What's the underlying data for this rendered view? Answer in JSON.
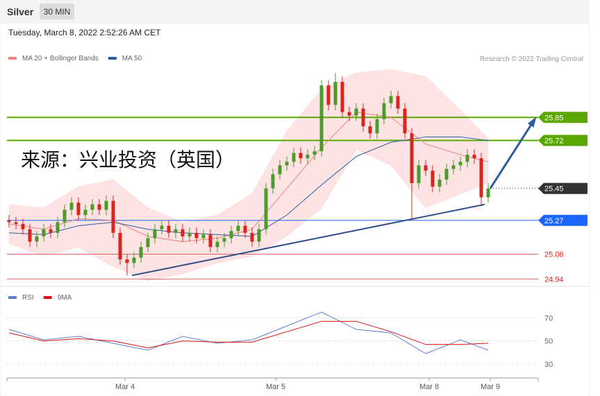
{
  "header": {
    "title": "Silver",
    "timeframe": "30 MIN",
    "timestamp": "Tuesday, March 8, 2022 2:52:26 AM CET"
  },
  "chart_data": [
    {
      "type": "candlestick",
      "source": "Research © 2022 Trading Central",
      "annotation": "来源：兴业投资（英国）",
      "xlim": [
        -0.3,
        76.2
      ],
      "ylim": [
        24.91,
        26.14
      ],
      "up_color": "#4c9a2a",
      "down_color": "#d7261e",
      "open": [
        25.27,
        25.26,
        25.25,
        25.22,
        25.15,
        25.18,
        25.22,
        25.2,
        25.26,
        25.33,
        25.37,
        25.3,
        25.33,
        25.36,
        25.33,
        25.38,
        25.2,
        25.05,
        25.03,
        25.06,
        25.12,
        25.17,
        25.22,
        25.24,
        25.2,
        25.22,
        25.18,
        25.2,
        25.17,
        25.19,
        25.12,
        25.15,
        25.17,
        25.21,
        25.24,
        25.2,
        25.15,
        25.22,
        25.45,
        25.53,
        25.58,
        25.6,
        25.65,
        25.62,
        25.64,
        25.66,
        26.03,
        25.92,
        26.05,
        25.88,
        25.86,
        25.9,
        25.8,
        25.76,
        25.84,
        25.93,
        25.97,
        25.9,
        25.76,
        25.48,
        25.58,
        25.55,
        25.46,
        25.5,
        25.56,
        25.58,
        25.6,
        25.64,
        25.62,
        25.4
      ],
      "high": [
        25.3,
        25.29,
        25.28,
        25.25,
        25.21,
        25.25,
        25.25,
        25.29,
        25.36,
        25.4,
        25.4,
        25.36,
        25.39,
        25.39,
        25.41,
        25.41,
        25.23,
        25.08,
        25.09,
        25.15,
        25.2,
        25.25,
        25.27,
        25.27,
        25.25,
        25.25,
        25.23,
        25.23,
        25.22,
        25.22,
        25.18,
        25.2,
        25.24,
        25.27,
        25.27,
        25.23,
        25.25,
        25.48,
        25.56,
        25.61,
        25.63,
        25.68,
        25.68,
        25.67,
        25.69,
        26.06,
        26.06,
        26.1,
        26.08,
        25.91,
        25.93,
        25.93,
        25.83,
        25.87,
        25.96,
        26.0,
        26.0,
        25.93,
        25.79,
        25.61,
        25.61,
        25.58,
        25.53,
        25.59,
        25.61,
        25.63,
        25.67,
        25.67,
        25.65,
        25.48
      ],
      "low": [
        25.23,
        25.22,
        25.19,
        25.12,
        25.12,
        25.15,
        25.17,
        25.17,
        25.23,
        25.3,
        25.27,
        25.27,
        25.3,
        25.3,
        25.3,
        25.17,
        25.02,
        24.96,
        25.0,
        25.03,
        25.09,
        25.14,
        25.19,
        25.17,
        25.17,
        25.15,
        25.15,
        25.14,
        25.14,
        25.09,
        25.09,
        25.12,
        25.14,
        25.18,
        25.17,
        25.12,
        25.12,
        25.19,
        25.42,
        25.5,
        25.55,
        25.57,
        25.59,
        25.59,
        25.61,
        25.63,
        25.89,
        25.89,
        25.85,
        25.83,
        25.83,
        25.77,
        25.73,
        25.73,
        25.81,
        25.9,
        25.87,
        25.73,
        25.27,
        25.45,
        25.52,
        25.43,
        25.43,
        25.47,
        25.53,
        25.55,
        25.57,
        25.59,
        25.35,
        25.37
      ],
      "close": [
        25.26,
        25.25,
        25.22,
        25.15,
        25.18,
        25.22,
        25.2,
        25.26,
        25.33,
        25.37,
        25.3,
        25.33,
        25.36,
        25.33,
        25.38,
        25.2,
        25.05,
        25.03,
        25.06,
        25.12,
        25.17,
        25.22,
        25.24,
        25.2,
        25.22,
        25.18,
        25.2,
        25.17,
        25.19,
        25.12,
        25.15,
        25.17,
        25.21,
        25.24,
        25.2,
        25.15,
        25.22,
        25.45,
        25.53,
        25.58,
        25.6,
        25.65,
        25.62,
        25.64,
        25.66,
        26.03,
        25.92,
        26.05,
        25.88,
        25.86,
        25.9,
        25.8,
        25.76,
        25.84,
        25.93,
        25.97,
        25.9,
        25.76,
        25.48,
        25.58,
        25.55,
        25.46,
        25.5,
        25.56,
        25.58,
        25.6,
        25.64,
        25.62,
        25.4,
        25.45
      ],
      "series": [
        {
          "name": "MA 20 + Bollinger Bands",
          "color": "#f08080",
          "band_color": "#fde0e0",
          "x": [
            0,
            5,
            10,
            15,
            20,
            25,
            30,
            35,
            40,
            45,
            50,
            55,
            60,
            65,
            69
          ],
          "values": [
            25.25,
            25.22,
            25.28,
            25.27,
            25.18,
            25.15,
            25.17,
            25.22,
            25.45,
            25.68,
            25.88,
            25.85,
            25.7,
            25.64,
            25.6
          ],
          "upper": [
            25.36,
            25.34,
            25.46,
            25.5,
            25.34,
            25.26,
            25.3,
            25.42,
            25.77,
            26.01,
            26.1,
            26.12,
            26.08,
            25.89,
            25.73
          ],
          "lower": [
            25.14,
            25.07,
            25.12,
            25.01,
            24.93,
            24.97,
            25.03,
            25.07,
            25.18,
            25.34,
            25.67,
            25.58,
            25.34,
            25.42,
            25.48
          ]
        },
        {
          "name": "MA 50",
          "color": "#2c5aa0",
          "x": [
            0,
            5,
            10,
            15,
            20,
            25,
            30,
            35,
            40,
            45,
            50,
            55,
            60,
            65,
            69
          ],
          "values": [
            25.2,
            25.19,
            25.24,
            25.26,
            25.22,
            25.2,
            25.19,
            25.18,
            25.3,
            25.47,
            25.63,
            25.71,
            25.74,
            25.74,
            25.72
          ]
        }
      ],
      "levels": [
        {
          "value": 25.85,
          "color": "#5aa700",
          "style": "badge",
          "line": "solid"
        },
        {
          "value": 25.72,
          "color": "#5aa700",
          "style": "badge",
          "line": "solid"
        },
        {
          "value": 25.45,
          "color": "#333333",
          "style": "badge",
          "line": "dotted"
        },
        {
          "value": 25.27,
          "color": "#1a66ff",
          "style": "badge",
          "line": "solid"
        },
        {
          "value": 25.08,
          "color": "#d7261e",
          "style": "text",
          "line": "solid"
        },
        {
          "value": 24.94,
          "color": "#d7261e",
          "style": "text",
          "line": "solid"
        }
      ],
      "trendlines": [
        {
          "x": [
            17.7,
            68.5
          ],
          "y": [
            24.96,
            25.36
          ],
          "color": "#2c4f8c"
        }
      ],
      "arrow": {
        "x": [
          69.3,
          75.7
        ],
        "y": [
          25.45,
          25.84
        ],
        "color": "#2c5aa0"
      }
    },
    {
      "type": "line",
      "xlim": [
        -0.3,
        76.2
      ],
      "ylim": [
        18,
        93
      ],
      "yticks": [
        70,
        50,
        30
      ],
      "xticks": [
        {
          "value": 16.7,
          "label": "Mar 4"
        },
        {
          "value": 38.4,
          "label": "Mar 5"
        },
        {
          "value": 60.5,
          "label": "Mar 8"
        },
        {
          "value": 69.3,
          "label": "Mar 9"
        }
      ],
      "series": [
        {
          "name": "RSI",
          "color": "#5b7fd6",
          "x": [
            0,
            5,
            10,
            15,
            20,
            25,
            30,
            35,
            40,
            45,
            50,
            55,
            60,
            65,
            69
          ],
          "values": [
            60,
            51,
            54,
            48,
            42,
            54,
            48,
            51,
            63,
            75,
            60,
            57,
            39,
            51,
            42
          ]
        },
        {
          "name": "9MA",
          "color": "#e01010",
          "x": [
            0,
            5,
            10,
            15,
            20,
            25,
            30,
            35,
            40,
            45,
            50,
            55,
            60,
            65,
            69
          ],
          "values": [
            57,
            50,
            52,
            50,
            44,
            50,
            49,
            49,
            58,
            67,
            67,
            58,
            47,
            47,
            48
          ]
        }
      ]
    }
  ]
}
